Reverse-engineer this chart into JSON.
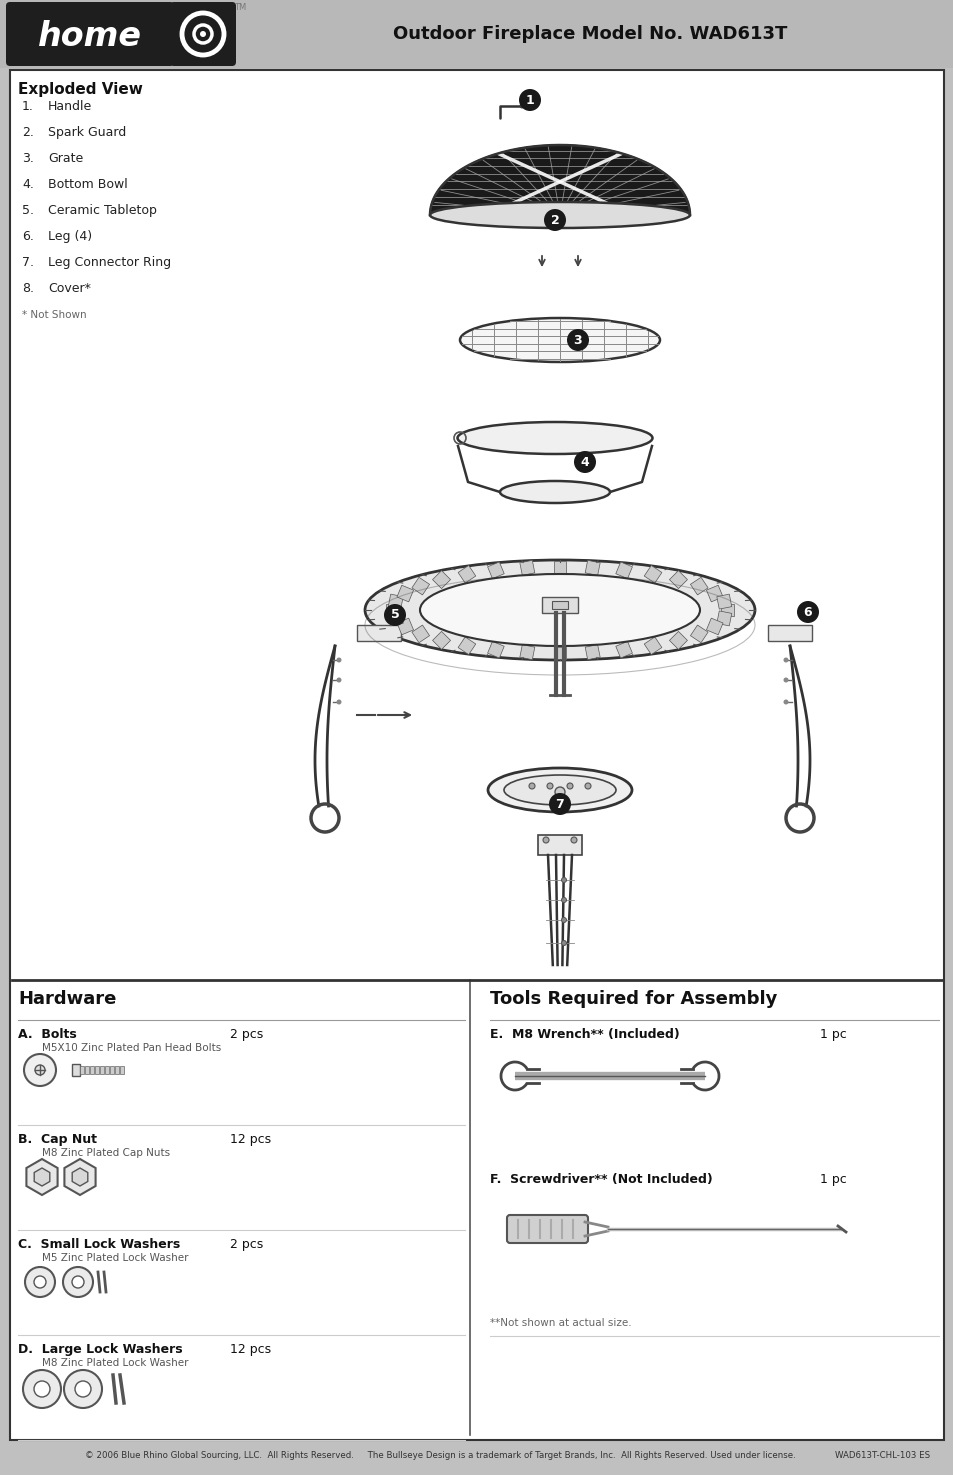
{
  "page_bg": "#c0c0c0",
  "content_bg": "#ffffff",
  "header_bg": "#b8b8b8",
  "header_text": "Outdoor Fireplace Model No. WAD613T",
  "header_text_color": "#1a1a1a",
  "logo_bg": "#1e1e1e",
  "section_border": "#333333",
  "title_exploded": "Exploded View",
  "parts_list": [
    [
      "1.",
      "Handle"
    ],
    [
      "2.",
      "Spark Guard"
    ],
    [
      "3.",
      "Grate"
    ],
    [
      "4.",
      "Bottom Bowl"
    ],
    [
      "5.",
      "Ceramic Tabletop"
    ],
    [
      "6.",
      "Leg (4)"
    ],
    [
      "7.",
      "Leg Connector Ring"
    ],
    [
      "8.",
      "Cover*"
    ]
  ],
  "parts_note": "* Not Shown",
  "hardware_title": "Hardware",
  "hardware_items": [
    {
      "label": "A.",
      "name": "Bolts",
      "sub": "M5X10 Zinc Plated Pan Head Bolts",
      "qty": "2 pcs"
    },
    {
      "label": "B.",
      "name": "Cap Nut",
      "sub": "M8 Zinc Plated Cap Nuts",
      "qty": "12 pcs"
    },
    {
      "label": "C.",
      "name": "Small Lock Washers",
      "sub": "M5 Zinc Plated Lock Washer",
      "qty": "2 pcs"
    },
    {
      "label": "D.",
      "name": "Large Lock Washers",
      "sub": "M8 Zinc Plated Lock Washer",
      "qty": "12 pcs"
    }
  ],
  "tools_title": "Tools Required for Assembly",
  "tools_items": [
    {
      "label": "E.",
      "name": "M8 Wrench** (Included)",
      "qty": "1 pc"
    },
    {
      "label": "F.",
      "name": "Screwdriver** (Not Included)",
      "qty": "1 pc"
    }
  ],
  "tools_note": "**Not shown at actual size.",
  "footer_left": "© 2006 Blue Rhino Global Sourcing, LLC.  All Rights Reserved.     The Bullseye Design is a trademark of Target Brands, Inc.  All Rights Reserved. Used under license.",
  "footer_right": "WAD613T-CHL-103 ES"
}
